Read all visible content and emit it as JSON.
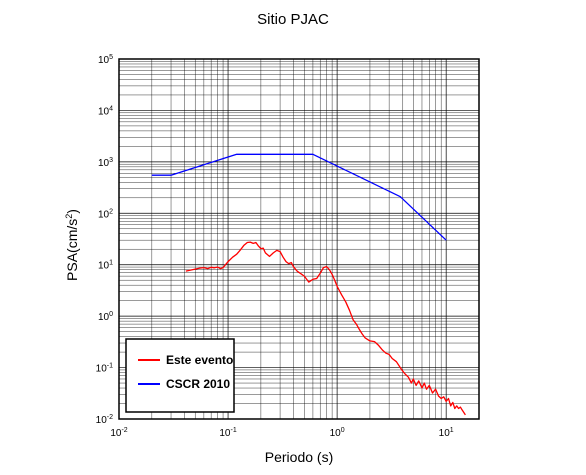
{
  "chart_data": {
    "type": "line",
    "title": "Sitio PJAC",
    "xlabel": "Periodo (s)",
    "ylabel": "PSA(cm/s",
    "ylabel_sup": "2",
    "ylabel_end": ")",
    "x_scale": "log",
    "y_scale": "log",
    "xlim": [
      0.01,
      20
    ],
    "ylim": [
      0.01,
      100000
    ],
    "x_ticks": [
      {
        "value": 0.01,
        "base": "10",
        "exp": "-2"
      },
      {
        "value": 0.1,
        "base": "10",
        "exp": "-1"
      },
      {
        "value": 1,
        "base": "10",
        "exp": "0"
      },
      {
        "value": 10,
        "base": "10",
        "exp": "1"
      }
    ],
    "y_ticks": [
      {
        "value": 0.01,
        "base": "10",
        "exp": "-2"
      },
      {
        "value": 0.1,
        "base": "10",
        "exp": "-1"
      },
      {
        "value": 1,
        "base": "10",
        "exp": "0"
      },
      {
        "value": 10,
        "base": "10",
        "exp": "1"
      },
      {
        "value": 100,
        "base": "10",
        "exp": "2"
      },
      {
        "value": 1000,
        "base": "10",
        "exp": "3"
      },
      {
        "value": 10000,
        "base": "10",
        "exp": "4"
      },
      {
        "value": 100000,
        "base": "10",
        "exp": "5"
      }
    ],
    "grid": true,
    "legend_position": "bottom-left",
    "series": [
      {
        "name": "Este evento",
        "color": "#ff0000",
        "x": [
          0.041,
          0.05,
          0.055,
          0.06,
          0.065,
          0.07,
          0.075,
          0.08,
          0.085,
          0.09,
          0.1,
          0.11,
          0.12,
          0.13,
          0.14,
          0.15,
          0.16,
          0.17,
          0.18,
          0.19,
          0.2,
          0.21,
          0.22,
          0.24,
          0.26,
          0.28,
          0.3,
          0.32,
          0.34,
          0.36,
          0.38,
          0.4,
          0.43,
          0.46,
          0.5,
          0.55,
          0.6,
          0.65,
          0.7,
          0.75,
          0.8,
          0.85,
          0.9,
          0.95,
          1.0,
          1.1,
          1.2,
          1.3,
          1.4,
          1.5,
          1.6,
          1.7,
          1.8,
          2.0,
          2.2,
          2.4,
          2.6,
          2.8,
          3.0,
          3.2,
          3.5,
          3.8,
          4.0,
          4.2,
          4.5,
          4.8,
          5.0,
          5.3,
          5.6,
          6.0,
          6.3,
          6.6,
          7.0,
          7.5,
          8.0,
          8.5,
          9.0,
          9.5,
          10.0,
          10.5,
          11.0,
          11.5,
          12.0,
          12.5,
          13.0,
          13.5,
          14.0,
          15.0
        ],
        "values": [
          7.5,
          8.2,
          8.6,
          8.8,
          8.4,
          8.9,
          8.7,
          9.0,
          8.4,
          8.8,
          11.5,
          14.0,
          16.0,
          19.5,
          24.0,
          27.0,
          27.5,
          26.0,
          27.0,
          23.0,
          20.5,
          21.0,
          17.0,
          14.5,
          17.0,
          19.0,
          18.0,
          14.0,
          11.5,
          10.5,
          11.0,
          9.0,
          7.5,
          6.8,
          6.0,
          4.6,
          5.2,
          5.4,
          6.8,
          8.8,
          9.2,
          8.0,
          6.5,
          5.0,
          3.8,
          2.6,
          1.9,
          1.3,
          0.85,
          0.7,
          0.55,
          0.45,
          0.38,
          0.33,
          0.32,
          0.27,
          0.22,
          0.19,
          0.18,
          0.15,
          0.13,
          0.1,
          0.085,
          0.075,
          0.065,
          0.05,
          0.06,
          0.045,
          0.055,
          0.04,
          0.05,
          0.038,
          0.045,
          0.032,
          0.038,
          0.028,
          0.025,
          0.027,
          0.022,
          0.025,
          0.018,
          0.021,
          0.016,
          0.018,
          0.016,
          0.017,
          0.015,
          0.012
        ]
      },
      {
        "name": "CSCR 2010",
        "color": "#0000ff",
        "x": [
          0.02,
          0.03,
          0.12,
          0.6,
          3.8,
          10.0
        ],
        "values": [
          550,
          550,
          1400,
          1400,
          210,
          30
        ]
      }
    ]
  }
}
